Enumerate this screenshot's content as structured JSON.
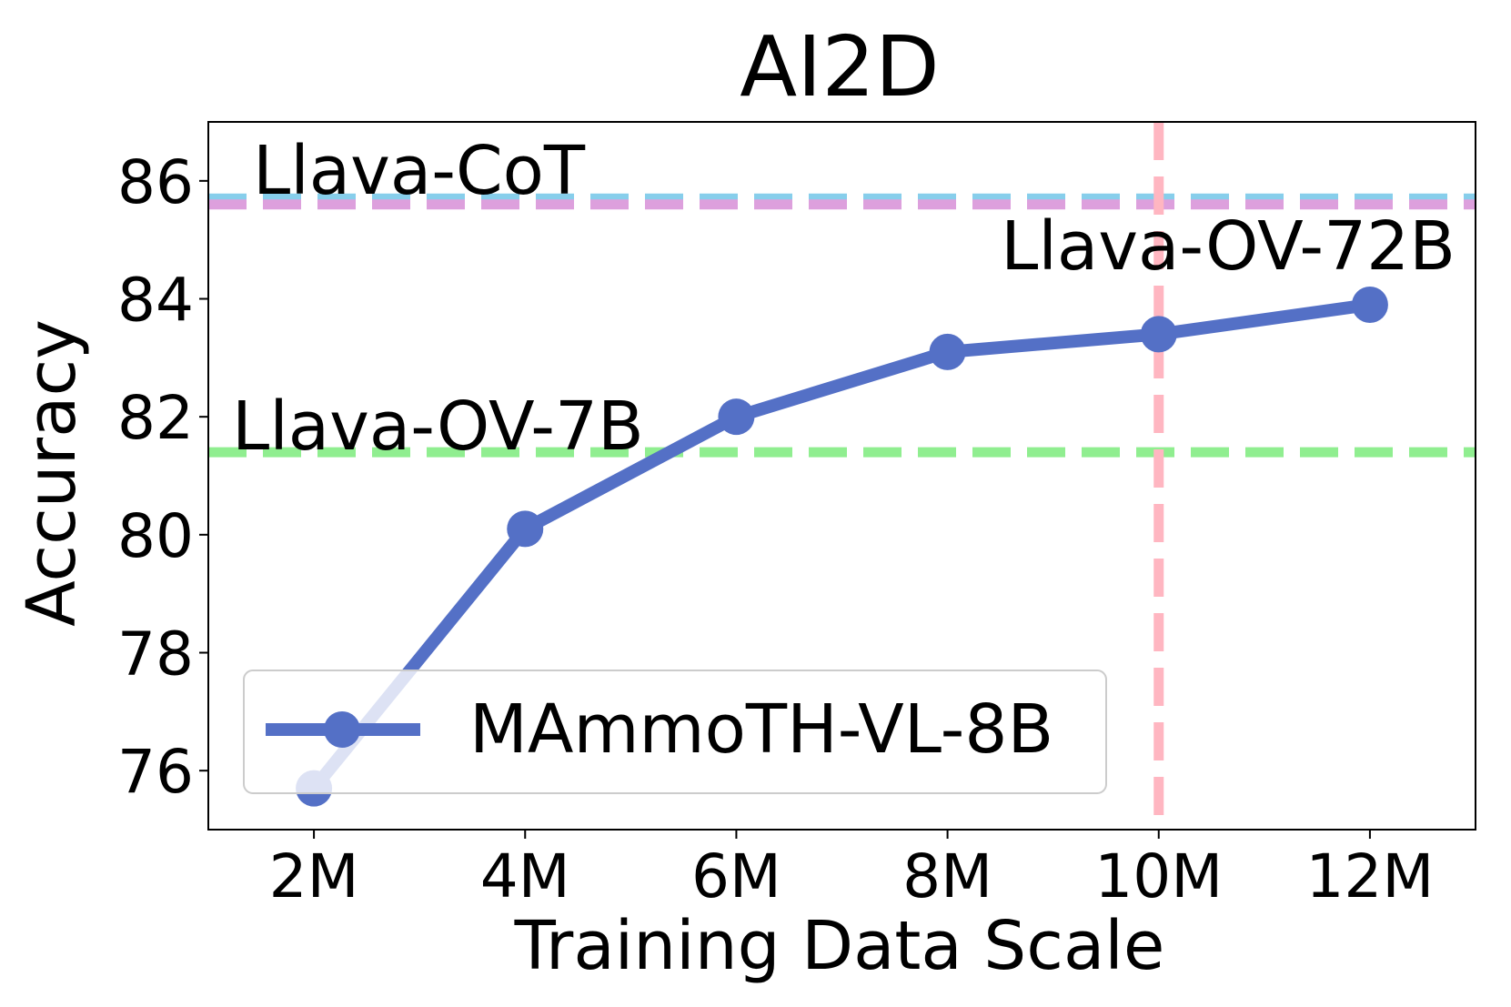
{
  "chart_data": {
    "type": "line",
    "title": "AI2D",
    "xlabel": "Training Data Scale",
    "ylabel": "Accuracy",
    "x": [
      2,
      4,
      6,
      8,
      10,
      12
    ],
    "xticks": [
      2,
      4,
      6,
      8,
      10,
      12
    ],
    "xtick_labels": [
      "2M",
      "4M",
      "6M",
      "8M",
      "10M",
      "12M"
    ],
    "yticks": [
      76,
      78,
      80,
      82,
      84,
      86
    ],
    "ytick_labels": [
      "76",
      "78",
      "80",
      "82",
      "84",
      "86"
    ],
    "xlim": [
      1,
      13
    ],
    "ylim": [
      75.0,
      87.0
    ],
    "grid": false,
    "series": [
      {
        "name": "MAmmoTH-VL-8B",
        "color": "#5470c6",
        "values": [
          75.7,
          80.1,
          82.0,
          83.1,
          83.4,
          83.9
        ]
      }
    ],
    "reference_lines": [
      {
        "label": "Llava-CoT",
        "orientation": "horizontal",
        "value": 85.7,
        "color": "#87ceeb"
      },
      {
        "label": "Llava-OV-72B",
        "orientation": "horizontal",
        "value": 85.6,
        "color": "#dda0dd"
      },
      {
        "label": "Llava-OV-7B",
        "orientation": "horizontal",
        "value": 81.4,
        "color": "#90ee90"
      },
      {
        "label": "",
        "orientation": "vertical",
        "value": 10,
        "color": "#ffb6c1"
      }
    ],
    "legend": {
      "position": "lower-left",
      "entries": [
        "MAmmoTH-VL-8B"
      ]
    }
  }
}
